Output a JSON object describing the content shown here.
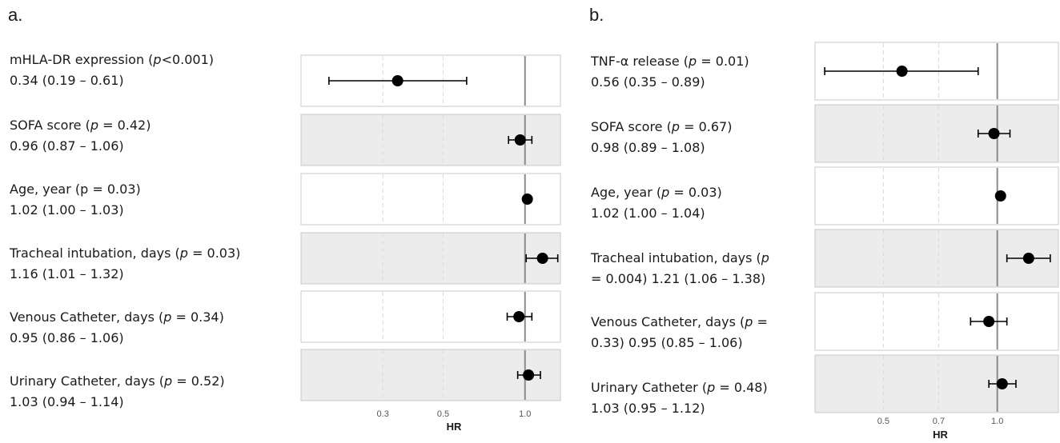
{
  "panels": [
    {
      "letter": "a.",
      "rows": [
        {
          "line1_pre": "mHLA-DR expression (",
          "line1_p": "p",
          "line1_post": "<0.001)",
          "line2": "0.34 (0.19 – 0.61)"
        },
        {
          "line1_pre": "SOFA score (",
          "line1_p": "p",
          "line1_post": " = 0.42)",
          "line2": "0.96 (0.87 – 1.06)"
        },
        {
          "line1_pre": "Age, year (p = 0.03)",
          "line1_p": "",
          "line1_post": "",
          "line2": "1.02 (1.00 – 1.03)"
        },
        {
          "line1_pre": "Tracheal intubation, days (",
          "line1_p": "p",
          "line1_post": " = 0.03)",
          "line2": "1.16 (1.01 – 1.32)"
        },
        {
          "line1_pre": "Venous Catheter, days (",
          "line1_p": "p",
          "line1_post": " = 0.34)",
          "line2": "0.95 (0.86 – 1.06)"
        },
        {
          "line1_pre": "Urinary Catheter, days (",
          "line1_p": "p",
          "line1_post": " = 0.52)",
          "line2": "1.03 (0.94 – 1.14)"
        }
      ]
    },
    {
      "letter": "b.",
      "rows": [
        {
          "line1_pre": "TNF-α release (",
          "line1_p": "p",
          "line1_post": " = 0.01)",
          "line2": "0.56 (0.35 – 0.89)"
        },
        {
          "line1_pre": "SOFA score (",
          "line1_p": "p",
          "line1_post": " = 0.67)",
          "line2": "0.98 (0.89 – 1.08)"
        },
        {
          "line1_pre": "Age, year (",
          "line1_p": "p",
          "line1_post": " = 0.03)",
          "line2": "1.02 (1.00 – 1.04)"
        },
        {
          "line1_pre": "Tracheal intubation, days (",
          "line1_p": "p",
          "line1_post": "",
          "line2": "= 0.004) 1.21 (1.06 – 1.38)"
        },
        {
          "line1_pre": "Venous Catheter, days (",
          "line1_p": "p",
          "line1_post": " =",
          "line2": "0.33) 0.95 (0.85 – 1.06)"
        },
        {
          "line1_pre": "Urinary Catheter (",
          "line1_p": "p",
          "line1_post": " = 0.48)",
          "line2": "1.03 (0.95 – 1.12)"
        }
      ]
    }
  ],
  "chart_data": [
    {
      "type": "forest",
      "xlabel": "HR",
      "scale": "log",
      "reference_line": 1.0,
      "ticks": [
        {
          "value": 0.3,
          "label": "0.3"
        },
        {
          "value": 0.5,
          "label": "0.5"
        },
        {
          "value": 1.0,
          "label": "1.0"
        }
      ],
      "xlim": [
        0.15,
        1.35
      ],
      "row_shading": [
        "white",
        "gray",
        "white",
        "gray",
        "white",
        "gray"
      ],
      "series": [
        {
          "name": "mHLA-DR expression",
          "hr": 0.34,
          "low": 0.19,
          "high": 0.61
        },
        {
          "name": "SOFA score",
          "hr": 0.96,
          "low": 0.87,
          "high": 1.06
        },
        {
          "name": "Age, year",
          "hr": 1.02,
          "low": 1.0,
          "high": 1.03
        },
        {
          "name": "Tracheal intubation, days",
          "hr": 1.16,
          "low": 1.01,
          "high": 1.32
        },
        {
          "name": "Venous Catheter, days",
          "hr": 0.95,
          "low": 0.86,
          "high": 1.06
        },
        {
          "name": "Urinary Catheter, days",
          "hr": 1.03,
          "low": 0.94,
          "high": 1.14
        }
      ]
    },
    {
      "type": "forest",
      "xlabel": "HR",
      "scale": "log",
      "reference_line": 1.0,
      "ticks": [
        {
          "value": 0.5,
          "label": "0.5"
        },
        {
          "value": 0.7,
          "label": "0.7"
        },
        {
          "value": 1.0,
          "label": "1.0"
        }
      ],
      "xlim": [
        0.33,
        1.45
      ],
      "row_shading": [
        "white",
        "gray",
        "white",
        "gray",
        "white",
        "gray"
      ],
      "series": [
        {
          "name": "TNF-α release",
          "hr": 0.56,
          "low": 0.35,
          "high": 0.89
        },
        {
          "name": "SOFA score",
          "hr": 0.98,
          "low": 0.89,
          "high": 1.08
        },
        {
          "name": "Age, year",
          "hr": 1.02,
          "low": 1.0,
          "high": 1.04
        },
        {
          "name": "Tracheal intubation, days",
          "hr": 1.21,
          "low": 1.06,
          "high": 1.38
        },
        {
          "name": "Venous Catheter, days",
          "hr": 0.95,
          "low": 0.85,
          "high": 1.06
        },
        {
          "name": "Urinary Catheter",
          "hr": 1.03,
          "low": 0.95,
          "high": 1.12
        }
      ]
    }
  ],
  "colors": {
    "panel_white": "#ffffff",
    "panel_gray": "#ececec",
    "panel_border": "#c8c8c8",
    "grid_dashed": "#d9d9d9",
    "reference_line": "#8a8a8a",
    "marker": "#000000"
  }
}
